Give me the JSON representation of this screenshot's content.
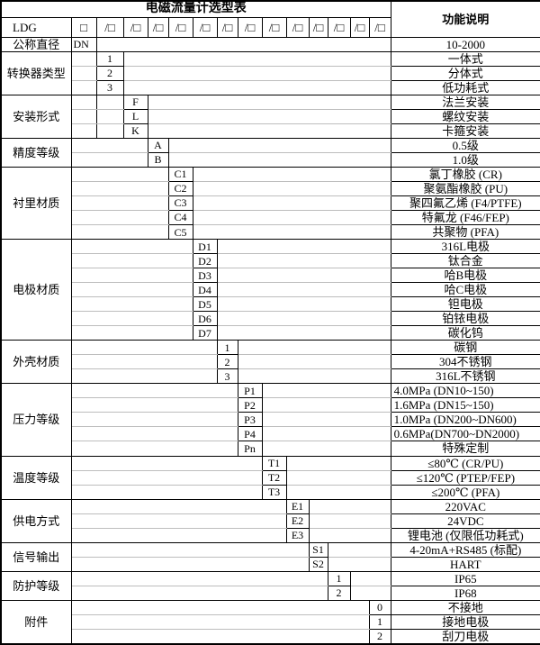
{
  "title": "电磁流量计选型表",
  "right_header": "功能说明",
  "model_row": {
    "prefix": "LDG",
    "box": "□",
    "slot": "/□",
    "slot_count": 13
  },
  "colors": {
    "background": "#ffffff",
    "line": "#000000",
    "light_line": "#bdbdbd",
    "text": "#000000"
  },
  "groups": [
    {
      "name": "公称直径",
      "col": 1,
      "items": [
        {
          "code": "DN",
          "desc": "10-2000",
          "code_align": "left"
        }
      ]
    },
    {
      "name": "转换器类型",
      "col": 2,
      "items": [
        {
          "code": "1",
          "desc": "一体式"
        },
        {
          "code": "2",
          "desc": "分体式"
        },
        {
          "code": "3",
          "desc": "低功耗式"
        }
      ]
    },
    {
      "name": "安装形式",
      "col": 3,
      "divider_after_col": 1,
      "items": [
        {
          "code": "F",
          "desc": "法兰安装"
        },
        {
          "code": "L",
          "desc": "螺纹安装"
        },
        {
          "code": "K",
          "desc": "卡箍安装"
        }
      ]
    },
    {
      "name": "精度等级",
      "col": 4,
      "items": [
        {
          "code": "A",
          "desc": "0.5级"
        },
        {
          "code": "B",
          "desc": "1.0级"
        }
      ]
    },
    {
      "name": "衬里材质",
      "col": 5,
      "items": [
        {
          "code": "C1",
          "desc": "氯丁橡胶 (CR)"
        },
        {
          "code": "C2",
          "desc": "聚氨酯橡胶 (PU)"
        },
        {
          "code": "C3",
          "desc": "聚四氟乙烯 (F4/PTFE)"
        },
        {
          "code": "C4",
          "desc": "特氟龙 (F46/FEP)"
        },
        {
          "code": "C5",
          "desc": "共聚物 (PFA)"
        }
      ]
    },
    {
      "name": "电极材质",
      "col": 6,
      "items": [
        {
          "code": "D1",
          "desc": "316L电极"
        },
        {
          "code": "D2",
          "desc": "钛合金"
        },
        {
          "code": "D3",
          "desc": "哈B电极"
        },
        {
          "code": "D4",
          "desc": "哈C电极"
        },
        {
          "code": "D5",
          "desc": "钽电极"
        },
        {
          "code": "D6",
          "desc": "铂铱电极"
        },
        {
          "code": "D7",
          "desc": "碳化钨"
        }
      ]
    },
    {
      "name": "外壳材质",
      "col": 7,
      "items": [
        {
          "code": "1",
          "desc": "碳钢"
        },
        {
          "code": "2",
          "desc": "304不锈钢"
        },
        {
          "code": "3",
          "desc": "316L不锈钢"
        }
      ]
    },
    {
      "name": "压力等级",
      "col": 8,
      "items": [
        {
          "code": "P1",
          "desc": "4.0MPa (DN10~150)",
          "desc_align": "left"
        },
        {
          "code": "P2",
          "desc": "1.6MPa (DN15~150)",
          "desc_align": "left"
        },
        {
          "code": "P3",
          "desc": "1.0MPa (DN200~DN600)",
          "desc_align": "left"
        },
        {
          "code": "P4",
          "desc": "0.6MPa(DN700~DN2000)",
          "desc_align": "left"
        },
        {
          "code": "Pn",
          "desc": "特殊定制"
        }
      ]
    },
    {
      "name": "温度等级",
      "col": 9,
      "items": [
        {
          "code": "T1",
          "desc": "≤80℃ (CR/PU)"
        },
        {
          "code": "T2",
          "desc": "≤120℃ (PTEP/FEP)"
        },
        {
          "code": "T3",
          "desc": "≤200℃ (PFA)"
        }
      ]
    },
    {
      "name": "供电方式",
      "col": 10,
      "items": [
        {
          "code": "E1",
          "desc": "220VAC"
        },
        {
          "code": "E2",
          "desc": "24VDC"
        },
        {
          "code": "E3",
          "desc": "锂电池 (仅限低功耗式)"
        }
      ]
    },
    {
      "name": "信号输出",
      "col": 11,
      "items": [
        {
          "code": "S1",
          "desc": "4-20mA+RS485 (标配)"
        },
        {
          "code": "S2",
          "desc": "HART"
        }
      ]
    },
    {
      "name": "防护等级",
      "col": 12,
      "items": [
        {
          "code": "1",
          "desc": "IP65"
        },
        {
          "code": "2",
          "desc": "IP68"
        }
      ]
    },
    {
      "name": "附件",
      "col": 14,
      "items": [
        {
          "code": "0",
          "desc": "不接地"
        },
        {
          "code": "1",
          "desc": "接地电极"
        },
        {
          "code": "2",
          "desc": "刮刀电极"
        }
      ]
    }
  ]
}
